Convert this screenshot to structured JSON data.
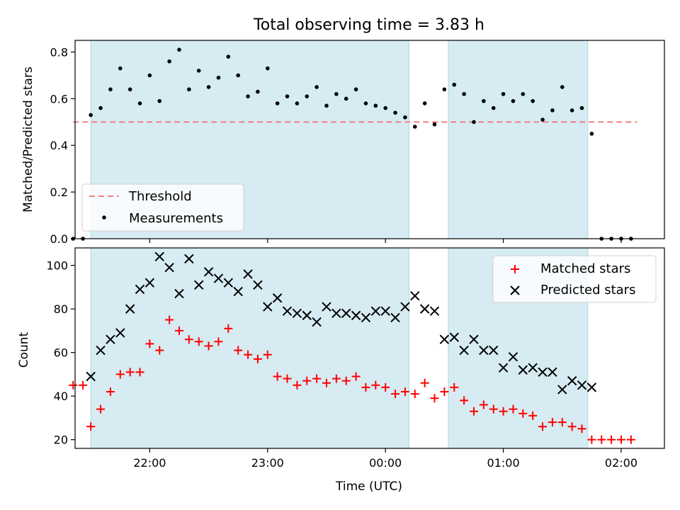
{
  "chart_data": [
    {
      "type": "scatter",
      "title": "Total observing time = 3.83 h",
      "xlabel": "",
      "ylabel": "Matched/Predicted stars",
      "x_unit": "time of day (UTC)",
      "xlim": [
        "21:22",
        "02:22"
      ],
      "ylim": [
        0,
        0.85
      ],
      "yticks": [
        0.0,
        0.2,
        0.4,
        0.6,
        0.8
      ],
      "ytick_labels": [
        "0.0",
        "0.2",
        "0.4",
        "0.6",
        "0.8"
      ],
      "shaded_intervals": [
        [
          "21:30",
          "00:12"
        ],
        [
          "00:32",
          "01:43"
        ]
      ],
      "threshold": {
        "name": "Threshold",
        "y": 0.5,
        "x_range": [
          "21:21",
          "02:08"
        ],
        "color": "#f08080",
        "style": "dashed"
      },
      "series": [
        {
          "name": "Measurements",
          "color": "#000000",
          "marker": "dot",
          "x": [
            "21:21",
            "21:26",
            "21:30",
            "21:35",
            "21:40",
            "21:45",
            "21:50",
            "21:55",
            "22:00",
            "22:05",
            "22:10",
            "22:15",
            "22:20",
            "22:25",
            "22:30",
            "22:35",
            "22:40",
            "22:45",
            "22:50",
            "22:55",
            "23:00",
            "23:05",
            "23:10",
            "23:15",
            "23:20",
            "23:25",
            "23:30",
            "23:35",
            "23:40",
            "23:45",
            "23:50",
            "23:55",
            "00:00",
            "00:05",
            "00:10",
            "00:15",
            "00:20",
            "00:25",
            "00:30",
            "00:35",
            "00:40",
            "00:45",
            "00:50",
            "00:55",
            "01:00",
            "01:05",
            "01:10",
            "01:15",
            "01:20",
            "01:25",
            "01:30",
            "01:35",
            "01:40",
            "01:45",
            "01:50",
            "01:55",
            "02:00",
            "02:05"
          ],
          "y": [
            0,
            0,
            0.53,
            0.56,
            0.64,
            0.73,
            0.64,
            0.58,
            0.7,
            0.59,
            0.76,
            0.81,
            0.64,
            0.72,
            0.65,
            0.69,
            0.78,
            0.7,
            0.61,
            0.63,
            0.73,
            0.58,
            0.61,
            0.58,
            0.61,
            0.65,
            0.57,
            0.62,
            0.6,
            0.64,
            0.58,
            0.57,
            0.56,
            0.54,
            0.52,
            0.48,
            0.58,
            0.49,
            0.64,
            0.66,
            0.62,
            0.5,
            0.59,
            0.56,
            0.62,
            0.59,
            0.62,
            0.59,
            0.51,
            0.55,
            0.65,
            0.55,
            0.56,
            0.45,
            0,
            0,
            0,
            0
          ]
        }
      ],
      "legend": {
        "position": "lower-left",
        "entries": [
          "Threshold",
          "Measurements"
        ]
      }
    },
    {
      "type": "scatter",
      "title": "",
      "xlabel": "Time (UTC)",
      "ylabel": "Count",
      "xlim": [
        "21:22",
        "02:22"
      ],
      "xticks": [
        "22:00",
        "23:00",
        "00:00",
        "01:00",
        "02:00"
      ],
      "ylim": [
        16,
        108
      ],
      "yticks": [
        20,
        40,
        60,
        80,
        100
      ],
      "ytick_labels": [
        "20",
        "40",
        "60",
        "80",
        "100"
      ],
      "shaded_intervals": [
        [
          "21:30",
          "00:12"
        ],
        [
          "00:32",
          "01:43"
        ]
      ],
      "series": [
        {
          "name": "Matched stars",
          "color": "#ff0000",
          "marker": "plus",
          "x": [
            "21:21",
            "21:26",
            "21:30",
            "21:35",
            "21:40",
            "21:45",
            "21:50",
            "21:55",
            "22:00",
            "22:05",
            "22:10",
            "22:15",
            "22:20",
            "22:25",
            "22:30",
            "22:35",
            "22:40",
            "22:45",
            "22:50",
            "22:55",
            "23:00",
            "23:05",
            "23:10",
            "23:15",
            "23:20",
            "23:25",
            "23:30",
            "23:35",
            "23:40",
            "23:45",
            "23:50",
            "23:55",
            "00:00",
            "00:05",
            "00:10",
            "00:15",
            "00:20",
            "00:25",
            "00:30",
            "00:35",
            "00:40",
            "00:45",
            "00:50",
            "00:55",
            "01:00",
            "01:05",
            "01:10",
            "01:15",
            "01:20",
            "01:25",
            "01:30",
            "01:35",
            "01:40",
            "01:45",
            "01:50",
            "01:55",
            "02:00",
            "02:05"
          ],
          "y": [
            45,
            45,
            26,
            34,
            42,
            50,
            51,
            51,
            64,
            61,
            75,
            70,
            66,
            65,
            63,
            65,
            71,
            61,
            59,
            57,
            59,
            49,
            48,
            45,
            47,
            48,
            46,
            48,
            47,
            49,
            44,
            45,
            44,
            41,
            42,
            41,
            46,
            39,
            42,
            44,
            38,
            33,
            36,
            34,
            33,
            34,
            32,
            31,
            26,
            28,
            28,
            26,
            25,
            20,
            20,
            20,
            20,
            20
          ]
        },
        {
          "name": "Predicted stars",
          "color": "#000000",
          "marker": "x",
          "x": [
            "21:30",
            "21:35",
            "21:40",
            "21:45",
            "21:50",
            "21:55",
            "22:00",
            "22:05",
            "22:10",
            "22:15",
            "22:20",
            "22:25",
            "22:30",
            "22:35",
            "22:40",
            "22:45",
            "22:50",
            "22:55",
            "23:00",
            "23:05",
            "23:10",
            "23:15",
            "23:20",
            "23:25",
            "23:30",
            "23:35",
            "23:40",
            "23:45",
            "23:50",
            "23:55",
            "00:00",
            "00:05",
            "00:10",
            "00:15",
            "00:20",
            "00:25",
            "00:30",
            "00:35",
            "00:40",
            "00:45",
            "00:50",
            "00:55",
            "01:00",
            "01:05",
            "01:10",
            "01:15",
            "01:20",
            "01:25",
            "01:30",
            "01:35",
            "01:40",
            "01:45"
          ],
          "y": [
            49,
            61,
            66,
            69,
            80,
            89,
            92,
            104,
            99,
            87,
            103,
            91,
            97,
            94,
            92,
            88,
            96,
            91,
            81,
            85,
            79,
            78,
            77,
            74,
            81,
            78,
            78,
            77,
            76,
            79,
            79,
            76,
            81,
            86,
            80,
            79,
            66,
            67,
            61,
            66,
            61,
            61,
            53,
            58,
            52,
            53,
            51,
            51,
            43,
            47,
            45,
            44
          ]
        }
      ],
      "legend": {
        "position": "top-right",
        "entries": [
          "Matched stars",
          "Predicted stars"
        ]
      }
    }
  ],
  "colors": {
    "shade": "#add8e6",
    "threshold": "#f08080",
    "matched": "#ff0000",
    "predicted": "#000000"
  }
}
